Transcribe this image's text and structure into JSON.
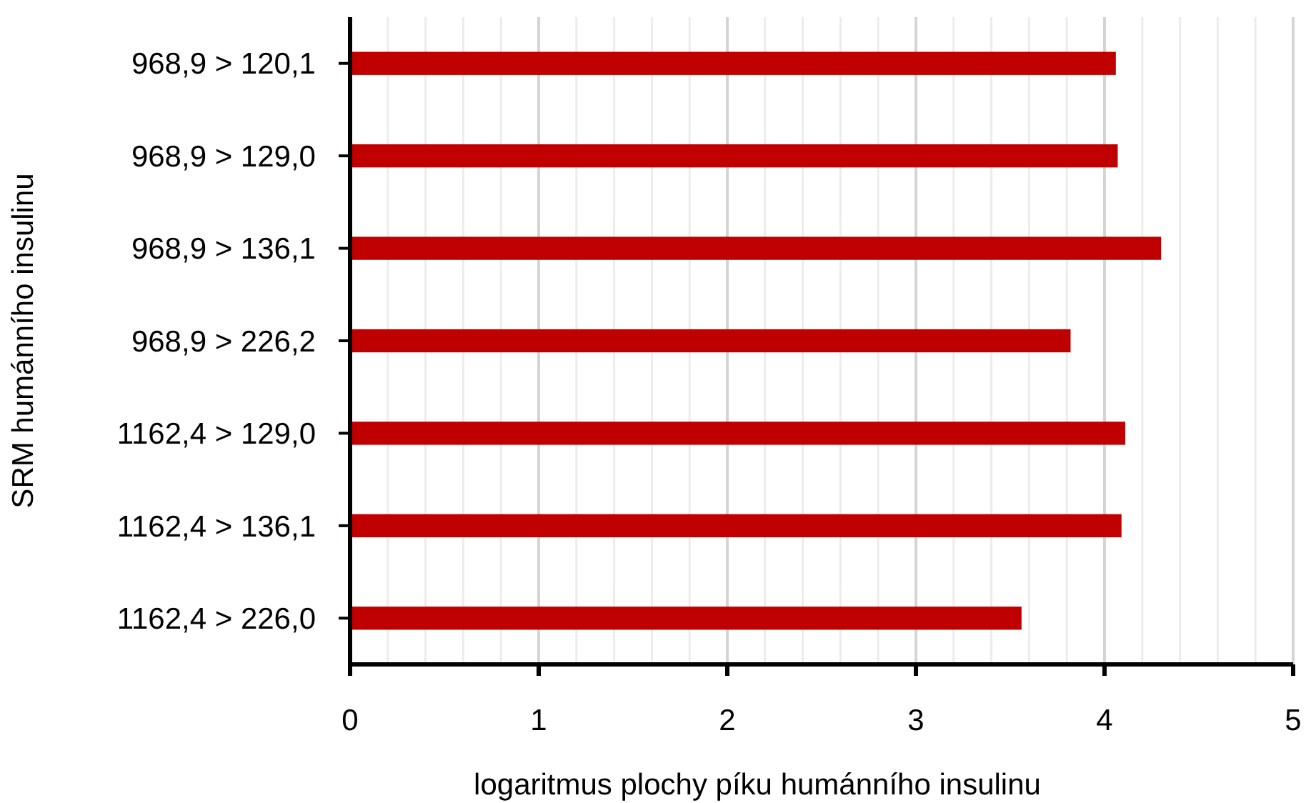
{
  "chart_data": {
    "type": "bar",
    "orientation": "horizontal",
    "xlabel": "logaritmus plochy píku humánního insulinu",
    "ylabel": "SRM humánního insulinu",
    "categories": [
      "968,9 > 120,1",
      "968,9 > 129,0",
      "968,9 > 136,1",
      "968,9 > 226,2",
      "1162,4 > 129,0",
      "1162,4 > 136,1",
      "1162,4 > 226,0"
    ],
    "values": [
      4.06,
      4.07,
      4.3,
      3.82,
      4.11,
      4.09,
      3.56
    ],
    "color": "#c00000",
    "xlim": [
      0,
      5
    ],
    "xticks": [
      0,
      {
        "value": 0.2,
        "label": null
      },
      {
        "value": 0.4,
        "label": null
      },
      {
        "value": 0.6,
        "label": null
      },
      {
        "value": 0.8,
        "label": null
      },
      1,
      {
        "value": 1.2,
        "label": null
      },
      {
        "value": 1.4,
        "label": null
      },
      {
        "value": 1.6,
        "label": null
      },
      {
        "value": 1.8,
        "label": null
      },
      2,
      {
        "value": 2.2,
        "label": null
      },
      {
        "value": 2.4,
        "label": null
      },
      {
        "value": 2.6,
        "label": null
      },
      {
        "value": 2.8,
        "label": null
      },
      3,
      {
        "value": 3.2,
        "label": null
      },
      {
        "value": 3.4,
        "label": null
      },
      {
        "value": 3.6,
        "label": null
      },
      {
        "value": 3.8,
        "label": null
      },
      4,
      {
        "value": 4.2,
        "label": null
      },
      {
        "value": 4.4,
        "label": null
      },
      {
        "value": 4.6,
        "label": null
      },
      {
        "value": 4.8,
        "label": null
      },
      5
    ],
    "grid": "x"
  }
}
